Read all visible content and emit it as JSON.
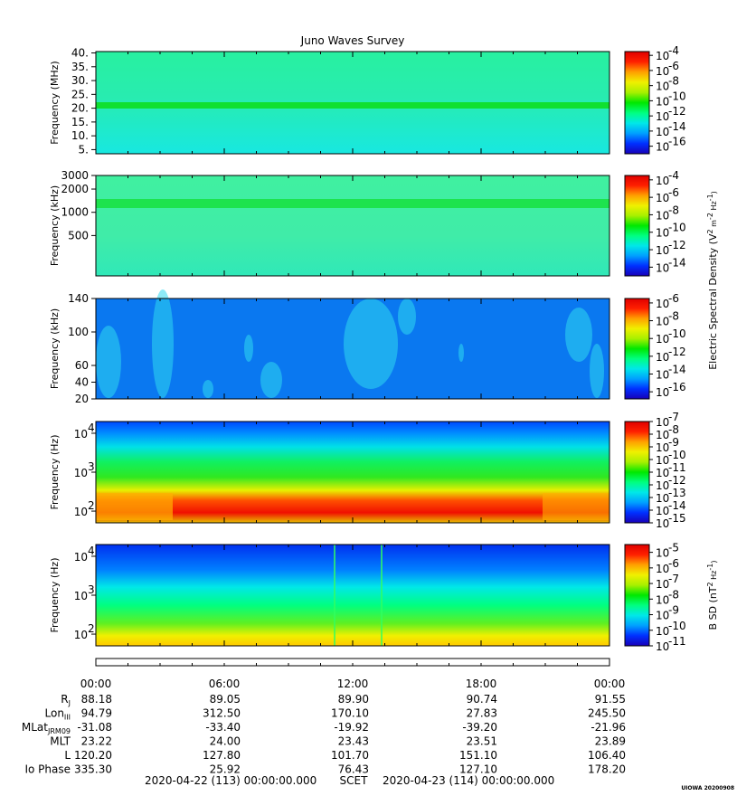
{
  "chart_data": {
    "type": "heatmap",
    "title": "Juno Waves Survey",
    "time_ticks": [
      "00:00",
      "06:00",
      "12:00",
      "18:00",
      "00:00"
    ],
    "panels": [
      {
        "ylabel": "Frequency (MHz)",
        "yscale": "linear",
        "ylim": [
          3.5,
          40.5
        ],
        "yticks": [
          "40.",
          "35.",
          "30.",
          "25.",
          "20.",
          "15.",
          "10.",
          "5."
        ],
        "ytick_values": [
          40,
          35,
          30,
          25,
          20,
          15,
          10,
          5
        ],
        "colorbar_ticks": [
          -4,
          -6,
          -8,
          -10,
          -12,
          -14,
          -16
        ],
        "colorbar_range": [
          -17,
          -3.5
        ]
      },
      {
        "ylabel": "Frequency (kHz)",
        "yscale": "log",
        "ylim": [
          150,
          3000
        ],
        "yticks": [
          "3000",
          "2000",
          "1000",
          "500"
        ],
        "ytick_values": [
          3000,
          2000,
          1000,
          500
        ],
        "colorbar_ticks": [
          -4,
          -6,
          -8,
          -10,
          -12,
          -14
        ],
        "colorbar_range": [
          -15,
          -3.5
        ]
      },
      {
        "ylabel": "Frequency (kHz)",
        "yscale": "linear",
        "ylim": [
          20,
          140
        ],
        "yticks": [
          "140",
          "100",
          "60",
          "40",
          "20"
        ],
        "ytick_values": [
          140,
          100,
          60,
          40,
          20
        ],
        "colorbar_ticks": [
          -6,
          -8,
          -10,
          -12,
          -14,
          -16
        ],
        "colorbar_range": [
          -16.8,
          -5.5
        ]
      },
      {
        "ylabel": "Frequency (Hz)",
        "yscale": "log",
        "ylim": [
          50,
          20000
        ],
        "yticks": [
          "4",
          "3",
          "2"
        ],
        "ytick_values": [
          10000,
          1000,
          100
        ],
        "colorbar_ticks": [
          -7,
          -8,
          -9,
          -10,
          -11,
          -12,
          -13,
          -14,
          -15
        ],
        "colorbar_range": [
          -15,
          -7
        ]
      },
      {
        "ylabel": "Frequency (Hz)",
        "yscale": "log",
        "ylim": [
          50,
          20000
        ],
        "yticks": [
          "4",
          "3",
          "2"
        ],
        "ytick_values": [
          10000,
          1000,
          100
        ],
        "colorbar_ticks": [
          -5,
          -6,
          -7,
          -8,
          -9,
          -10,
          -11
        ],
        "colorbar_range": [
          -11,
          -4.5
        ]
      }
    ],
    "colorbar_label_electric": "Electric Spectral Density (V",
    "colorbar_label_magnetic": "B SD (nT",
    "ephemeris": [
      {
        "label": "R",
        "sub": "J",
        "values": [
          "88.18",
          "89.05",
          "89.90",
          "90.74",
          "91.55"
        ]
      },
      {
        "label": "Lon",
        "sub": "III",
        "values": [
          "94.79",
          "312.50",
          "170.10",
          "27.83",
          "245.50"
        ]
      },
      {
        "label": "MLat",
        "sub": "JRM09",
        "values": [
          "-31.08",
          "-33.40",
          "-19.92",
          "-39.20",
          "-21.96"
        ]
      },
      {
        "label": "MLT",
        "sub": "",
        "values": [
          "23.22",
          "24.00",
          "23.43",
          "23.51",
          "23.89"
        ]
      },
      {
        "label": "L",
        "sub": "",
        "values": [
          "120.20",
          "127.80",
          "101.70",
          "151.10",
          "106.40"
        ]
      },
      {
        "label": "Io Phase",
        "sub": "",
        "values": [
          "335.30",
          "25.92",
          "76.43",
          "127.10",
          "178.20"
        ]
      }
    ],
    "footer_left": "2020-04-22 (113) 00:00:00.000",
    "footer_mid": "SCET",
    "footer_right": "2020-04-23 (114) 00:00:00.000",
    "credit": "UIOWA 20200908"
  },
  "colors": {
    "stops": [
      "#1800b8",
      "#0030ff",
      "#00a0ff",
      "#00e8e8",
      "#00ff80",
      "#00e800",
      "#a8f000",
      "#f0f000",
      "#ffa000",
      "#ff2000",
      "#e00000"
    ]
  }
}
